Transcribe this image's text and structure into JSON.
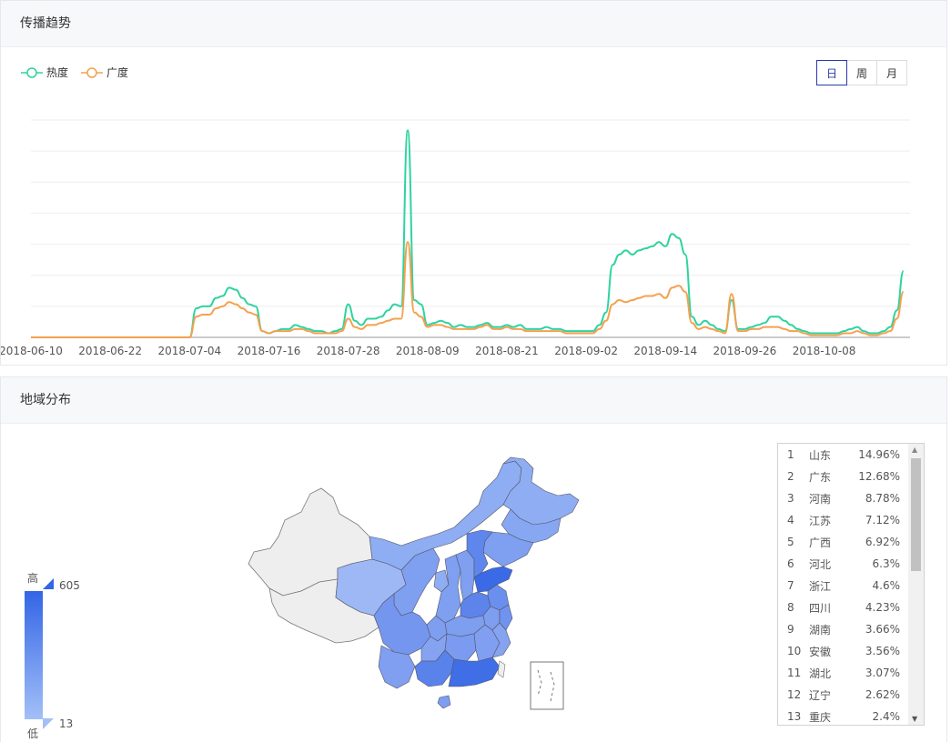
{
  "trend": {
    "title": "传播趋势",
    "legend": [
      {
        "name": "热度",
        "color": "#2ed3a0"
      },
      {
        "name": "广度",
        "color": "#f5a04e"
      }
    ],
    "periods": [
      {
        "label": "日",
        "active": true
      },
      {
        "label": "周",
        "active": false
      },
      {
        "label": "月",
        "active": false
      }
    ]
  },
  "chart_data": {
    "type": "line",
    "x_start": "2018-06-10",
    "x_end": "2018-10-21",
    "tick_labels": [
      "2018-06-10",
      "2018-06-22",
      "2018-07-04",
      "2018-07-16",
      "2018-07-28",
      "2018-08-09",
      "2018-08-21",
      "2018-09-02",
      "2018-09-14",
      "2018-09-26",
      "2018-10-08"
    ],
    "grid": true,
    "series": [
      {
        "name": "热度",
        "color": "#2ed3a0",
        "points": [
          [
            "2018-06-10",
            0
          ],
          [
            "2018-07-04",
            0
          ],
          [
            "2018-07-05",
            14
          ],
          [
            "2018-07-06",
            15
          ],
          [
            "2018-07-07",
            15
          ],
          [
            "2018-07-08",
            19
          ],
          [
            "2018-07-09",
            20
          ],
          [
            "2018-07-10",
            24
          ],
          [
            "2018-07-11",
            23
          ],
          [
            "2018-07-12",
            19
          ],
          [
            "2018-07-13",
            16
          ],
          [
            "2018-07-14",
            15
          ],
          [
            "2018-07-15",
            3
          ],
          [
            "2018-07-16",
            2
          ],
          [
            "2018-07-17",
            3
          ],
          [
            "2018-07-18",
            4
          ],
          [
            "2018-07-19",
            4
          ],
          [
            "2018-07-20",
            6
          ],
          [
            "2018-07-21",
            5
          ],
          [
            "2018-07-22",
            4
          ],
          [
            "2018-07-23",
            3
          ],
          [
            "2018-07-24",
            3
          ],
          [
            "2018-07-25",
            2
          ],
          [
            "2018-07-26",
            3
          ],
          [
            "2018-07-27",
            4
          ],
          [
            "2018-07-28",
            16
          ],
          [
            "2018-07-29",
            8
          ],
          [
            "2018-07-30",
            6
          ],
          [
            "2018-07-31",
            9
          ],
          [
            "2018-08-01",
            9
          ],
          [
            "2018-08-02",
            10
          ],
          [
            "2018-08-03",
            13
          ],
          [
            "2018-08-04",
            16
          ],
          [
            "2018-08-05",
            15
          ],
          [
            "2018-08-06",
            100
          ],
          [
            "2018-08-07",
            18
          ],
          [
            "2018-08-08",
            16
          ],
          [
            "2018-08-09",
            6
          ],
          [
            "2018-08-10",
            7
          ],
          [
            "2018-08-11",
            8
          ],
          [
            "2018-08-12",
            7
          ],
          [
            "2018-08-13",
            5
          ],
          [
            "2018-08-14",
            6
          ],
          [
            "2018-08-15",
            5
          ],
          [
            "2018-08-16",
            5
          ],
          [
            "2018-08-17",
            6
          ],
          [
            "2018-08-18",
            7
          ],
          [
            "2018-08-19",
            5
          ],
          [
            "2018-08-20",
            5
          ],
          [
            "2018-08-21",
            6
          ],
          [
            "2018-08-22",
            5
          ],
          [
            "2018-08-23",
            6
          ],
          [
            "2018-08-24",
            4
          ],
          [
            "2018-08-25",
            4
          ],
          [
            "2018-08-26",
            4
          ],
          [
            "2018-08-27",
            5
          ],
          [
            "2018-08-28",
            4
          ],
          [
            "2018-08-29",
            4
          ],
          [
            "2018-08-30",
            3
          ],
          [
            "2018-08-31",
            3
          ],
          [
            "2018-09-01",
            3
          ],
          [
            "2018-09-02",
            3
          ],
          [
            "2018-09-03",
            3
          ],
          [
            "2018-09-04",
            6
          ],
          [
            "2018-09-05",
            12
          ],
          [
            "2018-09-06",
            35
          ],
          [
            "2018-09-07",
            40
          ],
          [
            "2018-09-08",
            42
          ],
          [
            "2018-09-09",
            40
          ],
          [
            "2018-09-10",
            42
          ],
          [
            "2018-09-11",
            43
          ],
          [
            "2018-09-12",
            44
          ],
          [
            "2018-09-13",
            46
          ],
          [
            "2018-09-14",
            44
          ],
          [
            "2018-09-15",
            50
          ],
          [
            "2018-09-16",
            48
          ],
          [
            "2018-09-17",
            40
          ],
          [
            "2018-09-18",
            10
          ],
          [
            "2018-09-19",
            6
          ],
          [
            "2018-09-20",
            8
          ],
          [
            "2018-09-21",
            6
          ],
          [
            "2018-09-22",
            4
          ],
          [
            "2018-09-23",
            3
          ],
          [
            "2018-09-24",
            18
          ],
          [
            "2018-09-25",
            4
          ],
          [
            "2018-09-26",
            4
          ],
          [
            "2018-09-27",
            5
          ],
          [
            "2018-09-28",
            6
          ],
          [
            "2018-09-29",
            7
          ],
          [
            "2018-09-30",
            10
          ],
          [
            "2018-10-01",
            10
          ],
          [
            "2018-10-02",
            8
          ],
          [
            "2018-10-03",
            6
          ],
          [
            "2018-10-04",
            4
          ],
          [
            "2018-10-05",
            3
          ],
          [
            "2018-10-06",
            2
          ],
          [
            "2018-10-07",
            2
          ],
          [
            "2018-10-08",
            2
          ],
          [
            "2018-10-09",
            2
          ],
          [
            "2018-10-10",
            2
          ],
          [
            "2018-10-11",
            3
          ],
          [
            "2018-10-12",
            4
          ],
          [
            "2018-10-13",
            5
          ],
          [
            "2018-10-14",
            3
          ],
          [
            "2018-10-15",
            2
          ],
          [
            "2018-10-16",
            2
          ],
          [
            "2018-10-17",
            3
          ],
          [
            "2018-10-18",
            5
          ],
          [
            "2018-10-19",
            13
          ],
          [
            "2018-10-20",
            32
          ]
        ]
      },
      {
        "name": "广度",
        "color": "#f5a04e",
        "points": [
          [
            "2018-06-10",
            0
          ],
          [
            "2018-07-04",
            0
          ],
          [
            "2018-07-05",
            10
          ],
          [
            "2018-07-06",
            11
          ],
          [
            "2018-07-07",
            11
          ],
          [
            "2018-07-08",
            14
          ],
          [
            "2018-07-09",
            15
          ],
          [
            "2018-07-10",
            17
          ],
          [
            "2018-07-11",
            16
          ],
          [
            "2018-07-12",
            14
          ],
          [
            "2018-07-13",
            12
          ],
          [
            "2018-07-14",
            11
          ],
          [
            "2018-07-15",
            3
          ],
          [
            "2018-07-16",
            2
          ],
          [
            "2018-07-17",
            3
          ],
          [
            "2018-07-18",
            3
          ],
          [
            "2018-07-19",
            3
          ],
          [
            "2018-07-20",
            4
          ],
          [
            "2018-07-21",
            4
          ],
          [
            "2018-07-22",
            3
          ],
          [
            "2018-07-23",
            2
          ],
          [
            "2018-07-24",
            2
          ],
          [
            "2018-07-25",
            2
          ],
          [
            "2018-07-26",
            2
          ],
          [
            "2018-07-27",
            3
          ],
          [
            "2018-07-28",
            9
          ],
          [
            "2018-07-29",
            5
          ],
          [
            "2018-07-30",
            4
          ],
          [
            "2018-07-31",
            6
          ],
          [
            "2018-08-01",
            6
          ],
          [
            "2018-08-02",
            7
          ],
          [
            "2018-08-03",
            8
          ],
          [
            "2018-08-04",
            9
          ],
          [
            "2018-08-05",
            9
          ],
          [
            "2018-08-06",
            46
          ],
          [
            "2018-08-07",
            12
          ],
          [
            "2018-08-08",
            10
          ],
          [
            "2018-08-09",
            5
          ],
          [
            "2018-08-10",
            6
          ],
          [
            "2018-08-11",
            6
          ],
          [
            "2018-08-12",
            5
          ],
          [
            "2018-08-13",
            4
          ],
          [
            "2018-08-14",
            4
          ],
          [
            "2018-08-15",
            4
          ],
          [
            "2018-08-16",
            4
          ],
          [
            "2018-08-17",
            5
          ],
          [
            "2018-08-18",
            6
          ],
          [
            "2018-08-19",
            4
          ],
          [
            "2018-08-20",
            4
          ],
          [
            "2018-08-21",
            5
          ],
          [
            "2018-08-22",
            4
          ],
          [
            "2018-08-23",
            4
          ],
          [
            "2018-08-24",
            3
          ],
          [
            "2018-08-25",
            3
          ],
          [
            "2018-08-26",
            3
          ],
          [
            "2018-08-27",
            3
          ],
          [
            "2018-08-28",
            3
          ],
          [
            "2018-08-29",
            3
          ],
          [
            "2018-08-30",
            2
          ],
          [
            "2018-08-31",
            2
          ],
          [
            "2018-09-01",
            2
          ],
          [
            "2018-09-02",
            2
          ],
          [
            "2018-09-03",
            2
          ],
          [
            "2018-09-04",
            4
          ],
          [
            "2018-09-05",
            8
          ],
          [
            "2018-09-06",
            16
          ],
          [
            "2018-09-07",
            18
          ],
          [
            "2018-09-08",
            17
          ],
          [
            "2018-09-09",
            18
          ],
          [
            "2018-09-10",
            19
          ],
          [
            "2018-09-11",
            20
          ],
          [
            "2018-09-12",
            20
          ],
          [
            "2018-09-13",
            21
          ],
          [
            "2018-09-14",
            19
          ],
          [
            "2018-09-15",
            24
          ],
          [
            "2018-09-16",
            25
          ],
          [
            "2018-09-17",
            22
          ],
          [
            "2018-09-18",
            7
          ],
          [
            "2018-09-19",
            4
          ],
          [
            "2018-09-20",
            5
          ],
          [
            "2018-09-21",
            4
          ],
          [
            "2018-09-22",
            3
          ],
          [
            "2018-09-23",
            2
          ],
          [
            "2018-09-24",
            21
          ],
          [
            "2018-09-25",
            3
          ],
          [
            "2018-09-26",
            3
          ],
          [
            "2018-09-27",
            4
          ],
          [
            "2018-09-28",
            4
          ],
          [
            "2018-09-29",
            5
          ],
          [
            "2018-09-30",
            5
          ],
          [
            "2018-10-01",
            5
          ],
          [
            "2018-10-02",
            4
          ],
          [
            "2018-10-03",
            3
          ],
          [
            "2018-10-04",
            3
          ],
          [
            "2018-10-05",
            2
          ],
          [
            "2018-10-06",
            1
          ],
          [
            "2018-10-07",
            1
          ],
          [
            "2018-10-08",
            1
          ],
          [
            "2018-10-09",
            1
          ],
          [
            "2018-10-10",
            1
          ],
          [
            "2018-10-11",
            2
          ],
          [
            "2018-10-12",
            2
          ],
          [
            "2018-10-13",
            3
          ],
          [
            "2018-10-14",
            2
          ],
          [
            "2018-10-15",
            1
          ],
          [
            "2018-10-16",
            1
          ],
          [
            "2018-10-17",
            2
          ],
          [
            "2018-10-18",
            3
          ],
          [
            "2018-10-19",
            9
          ],
          [
            "2018-10-20",
            22
          ]
        ]
      }
    ]
  },
  "region": {
    "title": "地域分布",
    "visual_map": {
      "high_label": "高",
      "low_label": "低",
      "max": "605",
      "min": "13",
      "color_high": "#3366e6",
      "color_low": "#a3bff7"
    },
    "ranking": [
      {
        "rank": "1",
        "name": "山东",
        "pct": "14.96%"
      },
      {
        "rank": "2",
        "name": "广东",
        "pct": "12.68%"
      },
      {
        "rank": "3",
        "name": "河南",
        "pct": "8.78%"
      },
      {
        "rank": "4",
        "name": "江苏",
        "pct": "7.12%"
      },
      {
        "rank": "5",
        "name": "广西",
        "pct": "6.92%"
      },
      {
        "rank": "6",
        "name": "河北",
        "pct": "6.3%"
      },
      {
        "rank": "7",
        "name": "浙江",
        "pct": "4.6%"
      },
      {
        "rank": "8",
        "name": "四川",
        "pct": "4.23%"
      },
      {
        "rank": "9",
        "name": "湖南",
        "pct": "3.66%"
      },
      {
        "rank": "10",
        "name": "安徽",
        "pct": "3.56%"
      },
      {
        "rank": "11",
        "name": "湖北",
        "pct": "3.07%"
      },
      {
        "rank": "12",
        "name": "辽宁",
        "pct": "2.62%"
      },
      {
        "rank": "13",
        "name": "重庆",
        "pct": "2.4%"
      }
    ]
  }
}
